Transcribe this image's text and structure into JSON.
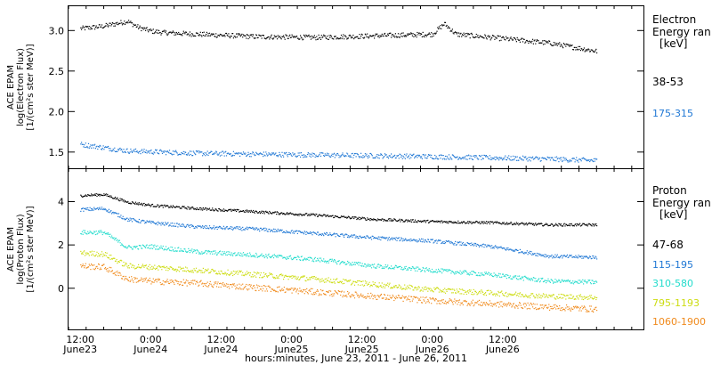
{
  "chart_data": [
    {
      "type": "scatter",
      "ylabel": [
        "ACE EPAM",
        "log(Electron Flux)",
        "[1/(cm²s ster MeV)]"
      ],
      "yticks": [
        1.5,
        2.0,
        2.5,
        3.0
      ],
      "ytick_labels": [
        "1.5",
        "2.0",
        "2.5",
        "3.0"
      ],
      "ylim": [
        1.3,
        3.3
      ],
      "legend": {
        "title": [
          "Electron",
          "Energy ran",
          "[keV]"
        ]
      },
      "series": [
        {
          "name": "38-53",
          "color": "#000000",
          "x": [
            0,
            4,
            8,
            10,
            12,
            14,
            20,
            30,
            40,
            50,
            60,
            62,
            64,
            70,
            80,
            84,
            88
          ],
          "y": [
            3.03,
            3.06,
            3.12,
            3.04,
            3.0,
            2.98,
            2.96,
            2.93,
            2.92,
            2.94,
            2.96,
            3.09,
            2.96,
            2.92,
            2.85,
            2.8,
            2.75
          ]
        },
        {
          "name": "175-315",
          "color": "#1f77d4",
          "x": [
            0,
            4,
            8,
            20,
            40,
            60,
            80,
            88
          ],
          "y": [
            1.6,
            1.56,
            1.52,
            1.49,
            1.47,
            1.45,
            1.42,
            1.4
          ]
        }
      ]
    },
    {
      "type": "scatter",
      "ylabel": [
        "ACE EPAM",
        "log(Proton Flux)",
        "[1/(cm²s ster MeV)]"
      ],
      "yticks": [
        0,
        2,
        4
      ],
      "ytick_labels": [
        "0",
        "2",
        "4"
      ],
      "ylim": [
        -1.9,
        5.5
      ],
      "legend": {
        "title": [
          "Proton",
          "Energy ran",
          "[keV]"
        ]
      },
      "series": [
        {
          "name": "47-68",
          "color": "#000000",
          "x": [
            0,
            4,
            8,
            12,
            20,
            30,
            40,
            50,
            60,
            70,
            80,
            88
          ],
          "y": [
            4.3,
            4.35,
            4.0,
            3.85,
            3.7,
            3.55,
            3.4,
            3.2,
            3.1,
            3.05,
            2.95,
            2.95
          ]
        },
        {
          "name": "115-195",
          "color": "#1f77d4",
          "x": [
            0,
            4,
            8,
            12,
            20,
            30,
            40,
            50,
            60,
            70,
            80,
            88
          ],
          "y": [
            3.65,
            3.7,
            3.2,
            3.05,
            2.85,
            2.75,
            2.55,
            2.35,
            2.2,
            1.95,
            1.5,
            1.45
          ]
        },
        {
          "name": "310-580",
          "color": "#22dccc",
          "x": [
            0,
            4,
            8,
            12,
            20,
            30,
            40,
            50,
            60,
            70,
            80,
            88
          ],
          "y": [
            2.6,
            2.6,
            1.9,
            1.95,
            1.7,
            1.55,
            1.35,
            1.05,
            0.85,
            0.65,
            0.35,
            0.3
          ]
        },
        {
          "name": "795-1193",
          "color": "#ccdc10",
          "x": [
            0,
            4,
            8,
            12,
            20,
            30,
            40,
            50,
            60,
            70,
            80,
            88
          ],
          "y": [
            1.65,
            1.6,
            1.05,
            1.0,
            0.85,
            0.65,
            0.45,
            0.2,
            -0.05,
            -0.2,
            -0.35,
            -0.4
          ]
        },
        {
          "name": "1060-1900",
          "color": "#f08a1c",
          "x": [
            0,
            4,
            8,
            12,
            20,
            30,
            40,
            50,
            60,
            70,
            80,
            88
          ],
          "y": [
            1.05,
            1.0,
            0.45,
            0.35,
            0.25,
            0.05,
            -0.15,
            -0.35,
            -0.55,
            -0.7,
            -0.85,
            -0.95
          ]
        }
      ]
    }
  ],
  "x_axis": {
    "range_hours": [
      -2,
      96
    ],
    "ticks": [
      {
        "h": 0,
        "time": "12:00",
        "day": "June23"
      },
      {
        "h": 12,
        "time": "0:00",
        "day": "June24"
      },
      {
        "h": 24,
        "time": "12:00",
        "day": "June24"
      },
      {
        "h": 36,
        "time": "0:00",
        "day": "June25"
      },
      {
        "h": 48,
        "time": "12:00",
        "day": "June25"
      },
      {
        "h": 60,
        "time": "0:00",
        "day": "June26"
      },
      {
        "h": 72,
        "time": "12:00",
        "day": "June26"
      }
    ],
    "xlabel": "hours:minutes, June 23, 2011 - June 26, 2011"
  }
}
